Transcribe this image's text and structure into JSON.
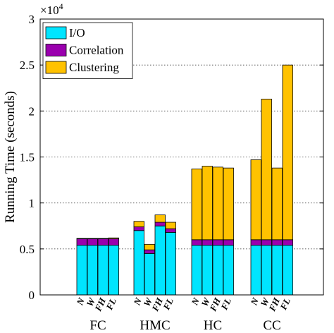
{
  "chart_data": {
    "type": "bar",
    "stacked": true,
    "ylabel": "Running Time (seconds)",
    "y_multiplier_label": "×10",
    "y_multiplier_exponent": "4",
    "ylim": [
      0,
      3
    ],
    "yticks": [
      0,
      0.5,
      1,
      1.5,
      2,
      2.5,
      3
    ],
    "ytick_labels": [
      "0",
      "0.5",
      "1",
      "1.5",
      "2",
      "2.5",
      "3"
    ],
    "grid": "horizontal-dotted",
    "legend_position": "top-left",
    "groups": [
      {
        "name": "FC",
        "bars": [
          {
            "label": "N",
            "io": 0.54,
            "correlation": 0.07,
            "clustering": 0.005
          },
          {
            "label": "W",
            "io": 0.54,
            "correlation": 0.07,
            "clustering": 0.005
          },
          {
            "label": "FH",
            "io": 0.54,
            "correlation": 0.07,
            "clustering": 0.005
          },
          {
            "label": "FL",
            "io": 0.54,
            "correlation": 0.07,
            "clustering": 0.01
          }
        ]
      },
      {
        "name": "HMC",
        "bars": [
          {
            "label": "N",
            "io": 0.7,
            "correlation": 0.04,
            "clustering": 0.06
          },
          {
            "label": "W",
            "io": 0.45,
            "correlation": 0.04,
            "clustering": 0.06
          },
          {
            "label": "FH",
            "io": 0.75,
            "correlation": 0.04,
            "clustering": 0.08
          },
          {
            "label": "FL",
            "io": 0.68,
            "correlation": 0.04,
            "clustering": 0.07
          }
        ]
      },
      {
        "name": "HC",
        "bars": [
          {
            "label": "N",
            "io": 0.54,
            "correlation": 0.06,
            "clustering": 0.77
          },
          {
            "label": "W",
            "io": 0.54,
            "correlation": 0.06,
            "clustering": 0.8
          },
          {
            "label": "FH",
            "io": 0.54,
            "correlation": 0.06,
            "clustering": 0.79
          },
          {
            "label": "FL",
            "io": 0.54,
            "correlation": 0.06,
            "clustering": 0.78
          }
        ]
      },
      {
        "name": "CC",
        "bars": [
          {
            "label": "N",
            "io": 0.54,
            "correlation": 0.06,
            "clustering": 0.87
          },
          {
            "label": "W",
            "io": 0.54,
            "correlation": 0.06,
            "clustering": 1.53
          },
          {
            "label": "FH",
            "io": 0.54,
            "correlation": 0.06,
            "clustering": 0.78
          },
          {
            "label": "FL",
            "io": 0.54,
            "correlation": 0.06,
            "clustering": 1.9
          }
        ]
      }
    ],
    "series": [
      {
        "key": "io",
        "name": "I/O",
        "color": "#00E5FF"
      },
      {
        "key": "correlation",
        "name": "Correlation",
        "color": "#9A00AE"
      },
      {
        "key": "clustering",
        "name": "Clustering",
        "color": "#FFC200"
      }
    ]
  }
}
